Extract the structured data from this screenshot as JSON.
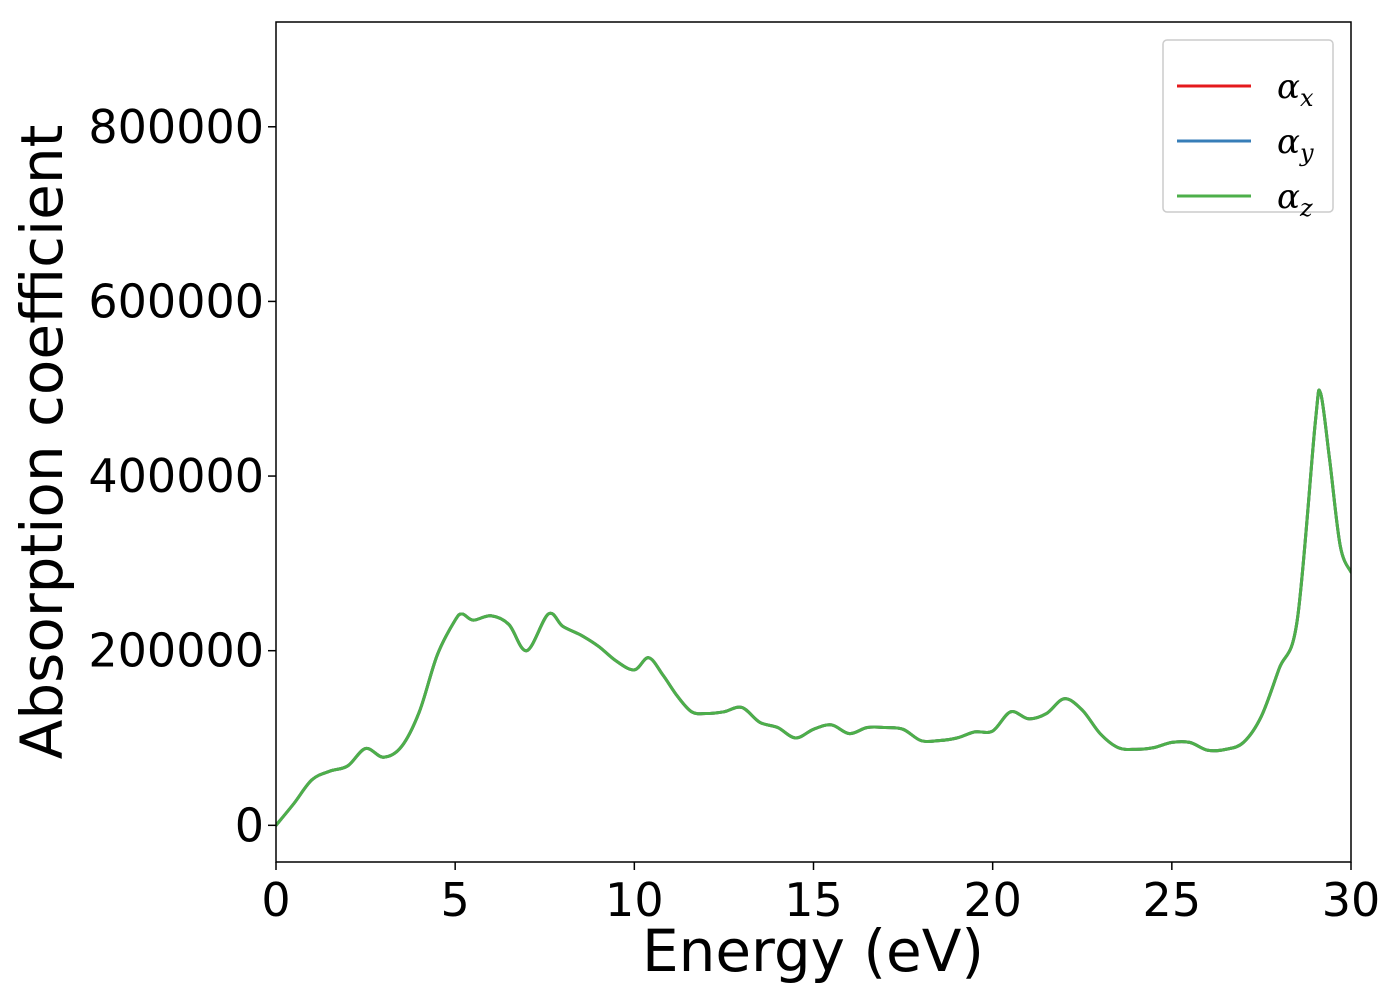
{
  "chart_data": {
    "type": "line",
    "xlabel": "Energy (eV)",
    "ylabel": "Absorption coefficient",
    "xlim": [
      0,
      30
    ],
    "ylim": [
      -42000,
      920000
    ],
    "xticks": [
      0,
      5,
      10,
      15,
      20,
      25,
      30
    ],
    "yticks": [
      0,
      200000,
      400000,
      600000,
      800000
    ],
    "grid": false,
    "legend_position": "top-right",
    "x": [
      0,
      0.5,
      1,
      1.5,
      2,
      2.5,
      3,
      3.5,
      4,
      4.5,
      5,
      5.2,
      5.5,
      6,
      6.5,
      7,
      7.6,
      8,
      8.5,
      9,
      9.5,
      10,
      10.4,
      10.8,
      11.2,
      11.6,
      12,
      12.5,
      13,
      13.5,
      14,
      14.5,
      15,
      15.5,
      16,
      16.5,
      17,
      17.5,
      18,
      18.5,
      19,
      19.5,
      20,
      20.5,
      21,
      21.5,
      22,
      22.5,
      23,
      23.5,
      24,
      24.5,
      25,
      25.5,
      26,
      26.5,
      27,
      27.5,
      28,
      28.5,
      29,
      29.15,
      29.4,
      29.7,
      30
    ],
    "series": [
      {
        "name": "αx",
        "legend_base": "α",
        "legend_sub": "x",
        "color": "#e41a1c",
        "y": [
          0,
          25000,
          52000,
          62000,
          68000,
          88000,
          78000,
          90000,
          130000,
          195000,
          235000,
          242000,
          235000,
          240000,
          230000,
          200000,
          242000,
          228000,
          218000,
          205000,
          188000,
          178000,
          192000,
          172000,
          148000,
          130000,
          128000,
          130000,
          135000,
          118000,
          112000,
          100000,
          110000,
          115000,
          105000,
          112000,
          112000,
          110000,
          97000,
          97000,
          100000,
          107000,
          108000,
          130000,
          122000,
          128000,
          145000,
          132000,
          105000,
          89000,
          87000,
          89000,
          95000,
          95000,
          86000,
          87000,
          95000,
          125000,
          180000,
          235000,
          460000,
          495000,
          420000,
          320000,
          290000
        ]
      },
      {
        "name": "αy",
        "legend_base": "α",
        "legend_sub": "y",
        "color": "#377eb8",
        "y": [
          0,
          25000,
          52000,
          62000,
          68000,
          88000,
          78000,
          90000,
          130000,
          195000,
          235000,
          242000,
          235000,
          240000,
          230000,
          200000,
          242000,
          228000,
          218000,
          205000,
          188000,
          178000,
          192000,
          172000,
          148000,
          130000,
          128000,
          130000,
          135000,
          118000,
          112000,
          100000,
          110000,
          115000,
          105000,
          112000,
          112000,
          110000,
          97000,
          97000,
          100000,
          107000,
          108000,
          130000,
          122000,
          128000,
          145000,
          132000,
          105000,
          89000,
          87000,
          89000,
          95000,
          95000,
          86000,
          87000,
          95000,
          125000,
          180000,
          235000,
          460000,
          495000,
          420000,
          320000,
          290000
        ]
      },
      {
        "name": "αz",
        "legend_base": "α",
        "legend_sub": "z",
        "color": "#4daf4a",
        "y": [
          0,
          25000,
          52000,
          62000,
          68000,
          88000,
          78000,
          90000,
          130000,
          195000,
          235000,
          242000,
          235000,
          240000,
          230000,
          200000,
          242000,
          228000,
          218000,
          205000,
          188000,
          178000,
          192000,
          172000,
          148000,
          130000,
          128000,
          130000,
          135000,
          118000,
          112000,
          100000,
          110000,
          115000,
          105000,
          112000,
          112000,
          110000,
          97000,
          97000,
          100000,
          107000,
          108000,
          130000,
          122000,
          128000,
          145000,
          132000,
          105000,
          89000,
          87000,
          89000,
          95000,
          95000,
          86000,
          87000,
          95000,
          125000,
          180000,
          235000,
          460000,
          495000,
          420000,
          320000,
          290000
        ]
      }
    ]
  }
}
